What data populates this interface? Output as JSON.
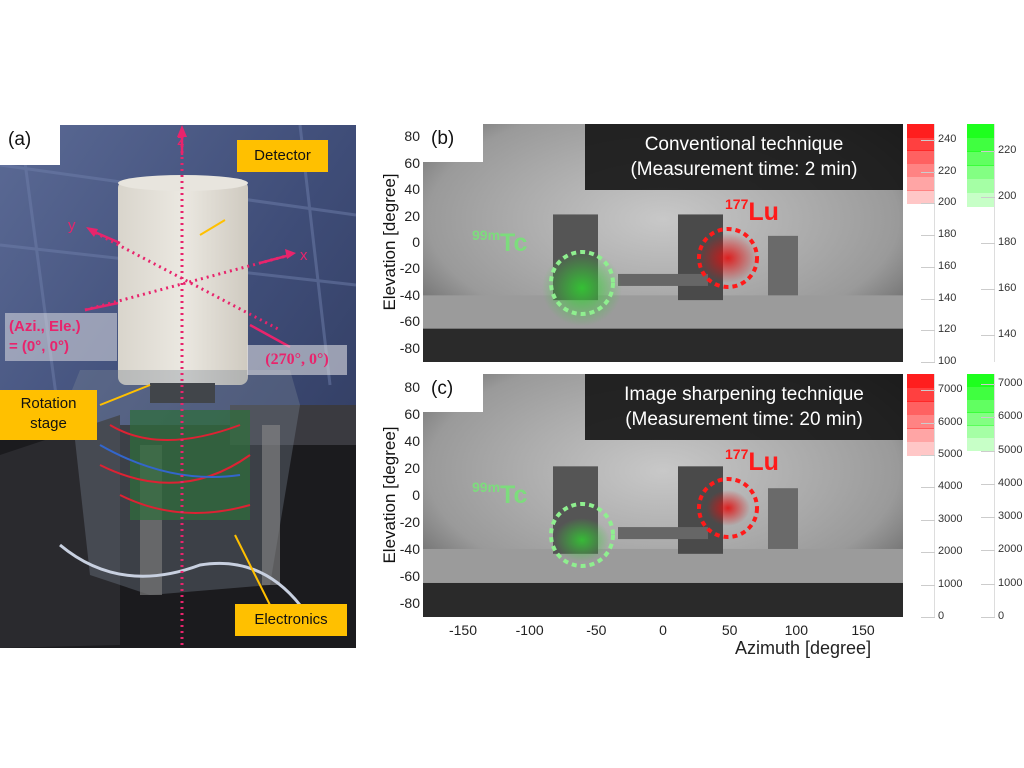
{
  "panel_a": {
    "label": "(a)",
    "axes": {
      "z": "z",
      "y": "y",
      "x": "x"
    },
    "origin_label_1": "(Azi., Ele.)",
    "origin_label_2": "= (0°, 0°)",
    "side_label": "(270°, 0°)",
    "detector": "Detector",
    "rotation_stage_1": "Rotation",
    "rotation_stage_2": "stage",
    "electronics": "Electronics",
    "colors": {
      "annotation_pink": "#e8246c",
      "callout": "#ffc000"
    }
  },
  "panel_b": {
    "label": "(b)",
    "title_1": "Conventional technique",
    "title_2": "(Measurement time: 2 min)",
    "ylabel": "Elevation [degree]",
    "tc_label": {
      "sup": "99m",
      "main": "Tc"
    },
    "lu_label": {
      "sup": "177",
      "main": "Lu"
    },
    "colorbar_red": {
      "ticks": [
        240,
        220,
        200,
        180,
        160,
        140,
        120,
        100
      ],
      "range": [
        100,
        250
      ],
      "filled_from": 200
    },
    "colorbar_green": {
      "ticks": [
        220,
        200,
        180,
        160,
        140
      ],
      "range": [
        128,
        232
      ],
      "filled_from": 196
    }
  },
  "panel_c": {
    "label": "(c)",
    "title_1": "Image sharpening technique",
    "title_2": "(Measurement time: 20 min)",
    "ylabel": "Elevation [degree]",
    "tc_label": {
      "sup": "99m",
      "main": "Tc"
    },
    "lu_label": {
      "sup": "177",
      "main": "Lu"
    },
    "colorbar_red": {
      "ticks": [
        7000,
        6000,
        5000,
        4000,
        3000,
        2000,
        1000,
        0
      ],
      "range": [
        0,
        7500
      ],
      "filled_from": 5000
    },
    "colorbar_green": {
      "ticks": [
        7000,
        6000,
        5000,
        4000,
        3000,
        2000,
        1000,
        0
      ],
      "range": [
        0,
        7300
      ],
      "filled_from": 5000
    }
  },
  "axes": {
    "elevation_ticks": [
      80,
      60,
      40,
      20,
      0,
      -20,
      -40,
      -60,
      -80
    ],
    "azimuth_ticks": [
      -150,
      -100,
      -50,
      0,
      50,
      100,
      150
    ],
    "azimuth_range": [
      -180,
      180
    ],
    "elevation_range": [
      -90,
      90
    ],
    "xlabel": "Azimuth [degree]"
  },
  "colors": {
    "tc": "#7ddc7d",
    "lu": "#ff1a1a",
    "red": "#ff2020",
    "green": "#22ff22"
  }
}
